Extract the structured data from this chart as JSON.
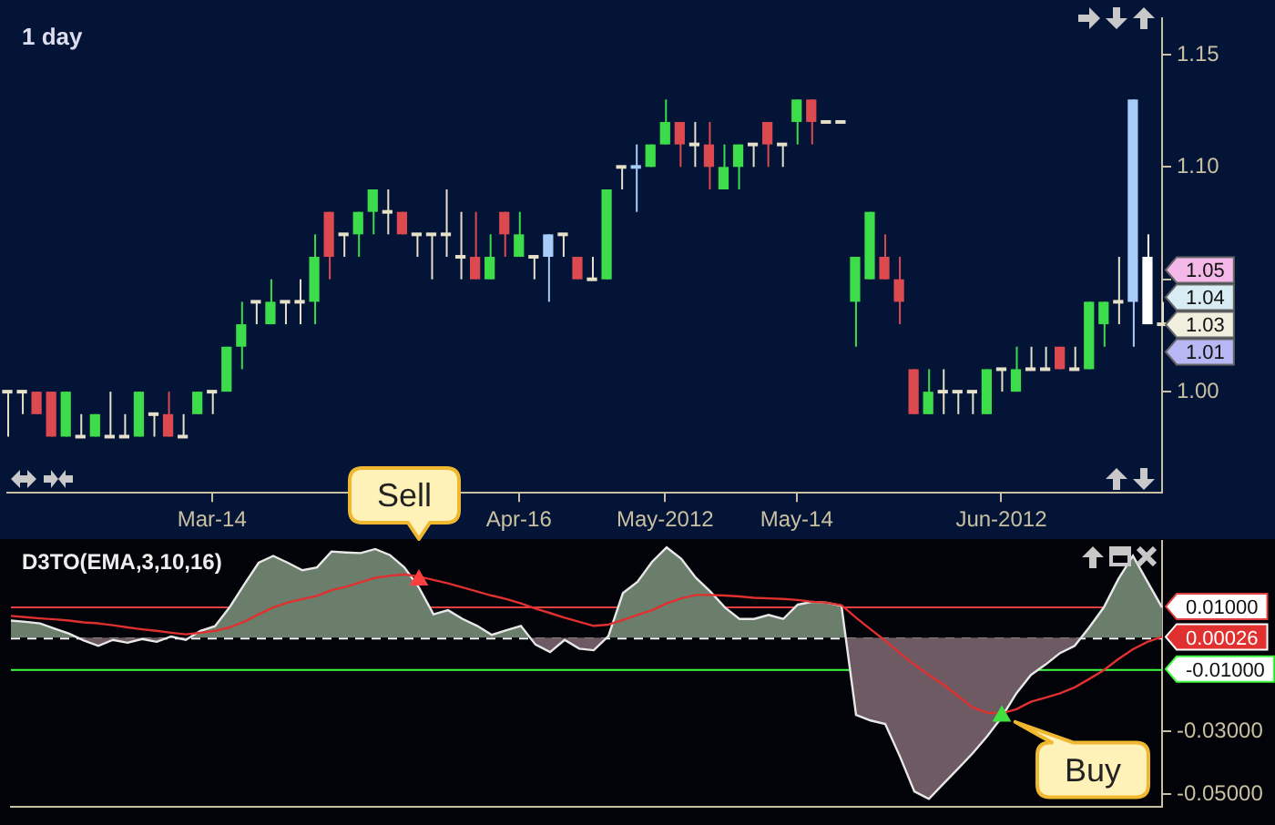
{
  "chart_data": [
    {
      "type": "candlestick",
      "title": "1 day",
      "categories": [
        null,
        null,
        null,
        null,
        null,
        null,
        null,
        null,
        null,
        null,
        null,
        null,
        null,
        null,
        "Mar-14",
        null,
        null,
        null,
        null,
        null,
        null,
        null,
        null,
        null,
        null,
        null,
        null,
        null,
        null,
        null,
        null,
        null,
        null,
        null,
        null,
        "Apr-16",
        null,
        null,
        null,
        null,
        null,
        null,
        null,
        null,
        null,
        "May-2012",
        null,
        null,
        null,
        null,
        null,
        null,
        null,
        null,
        "May-14",
        null,
        null,
        null,
        null,
        null,
        null,
        null,
        null,
        null,
        null,
        null,
        null,
        null,
        "Jun-2012",
        null,
        null,
        null,
        null,
        null,
        null,
        null,
        null,
        null,
        null,
        null
      ],
      "ohlc": [
        [
          1.0,
          1.0,
          0.98,
          1.0
        ],
        [
          1.0,
          1.0,
          0.99,
          1.0
        ],
        [
          1.0,
          1.0,
          0.99,
          0.99
        ],
        [
          1.0,
          1.0,
          0.98,
          0.98
        ],
        [
          0.98,
          1.0,
          0.98,
          1.0
        ],
        [
          0.98,
          0.99,
          0.98,
          0.98
        ],
        [
          0.98,
          0.99,
          0.98,
          0.99
        ],
        [
          0.98,
          1.0,
          0.98,
          0.98
        ],
        [
          0.98,
          0.99,
          0.98,
          0.98
        ],
        [
          0.98,
          1.0,
          0.98,
          1.0
        ],
        [
          0.99,
          0.99,
          0.98,
          0.99
        ],
        [
          0.99,
          1.0,
          0.98,
          0.98
        ],
        [
          0.98,
          0.99,
          0.98,
          0.98
        ],
        [
          0.99,
          1.0,
          0.99,
          1.0
        ],
        [
          1.0,
          1.0,
          0.99,
          1.0
        ],
        [
          1.0,
          1.02,
          1.0,
          1.02
        ],
        [
          1.02,
          1.04,
          1.01,
          1.03
        ],
        [
          1.04,
          1.04,
          1.03,
          1.04
        ],
        [
          1.03,
          1.05,
          1.03,
          1.04
        ],
        [
          1.04,
          1.04,
          1.03,
          1.04
        ],
        [
          1.04,
          1.05,
          1.03,
          1.04
        ],
        [
          1.04,
          1.07,
          1.03,
          1.06
        ],
        [
          1.08,
          1.08,
          1.05,
          1.06
        ],
        [
          1.07,
          1.07,
          1.06,
          1.07
        ],
        [
          1.07,
          1.08,
          1.06,
          1.08
        ],
        [
          1.08,
          1.09,
          1.07,
          1.09
        ],
        [
          1.08,
          1.09,
          1.07,
          1.08
        ],
        [
          1.08,
          1.08,
          1.07,
          1.07
        ],
        [
          1.07,
          1.07,
          1.06,
          1.07
        ],
        [
          1.07,
          1.07,
          1.05,
          1.07
        ],
        [
          1.07,
          1.09,
          1.06,
          1.07
        ],
        [
          1.06,
          1.08,
          1.05,
          1.06
        ],
        [
          1.06,
          1.08,
          1.05,
          1.05
        ],
        [
          1.05,
          1.07,
          1.05,
          1.06
        ],
        [
          1.08,
          1.08,
          1.06,
          1.07
        ],
        [
          1.06,
          1.08,
          1.06,
          1.07
        ],
        [
          1.06,
          1.06,
          1.05,
          1.06
        ],
        [
          1.06,
          1.07,
          1.04,
          1.07
        ],
        [
          1.07,
          1.07,
          1.06,
          1.07
        ],
        [
          1.06,
          1.06,
          1.05,
          1.05
        ],
        [
          1.05,
          1.06,
          1.05,
          1.05
        ],
        [
          1.05,
          1.09,
          1.05,
          1.09
        ],
        [
          1.1,
          1.1,
          1.09,
          1.1
        ],
        [
          1.1,
          1.11,
          1.08,
          1.1
        ],
        [
          1.1,
          1.11,
          1.1,
          1.11
        ],
        [
          1.11,
          1.13,
          1.11,
          1.12
        ],
        [
          1.12,
          1.12,
          1.1,
          1.11
        ],
        [
          1.11,
          1.12,
          1.1,
          1.11
        ],
        [
          1.11,
          1.12,
          1.09,
          1.1
        ],
        [
          1.09,
          1.11,
          1.09,
          1.1
        ],
        [
          1.1,
          1.11,
          1.09,
          1.11
        ],
        [
          1.11,
          1.11,
          1.1,
          1.11
        ],
        [
          1.12,
          1.12,
          1.1,
          1.11
        ],
        [
          1.11,
          1.11,
          1.1,
          1.11
        ],
        [
          1.12,
          1.13,
          1.11,
          1.13
        ],
        [
          1.13,
          1.13,
          1.11,
          1.12
        ],
        [
          1.12,
          1.12,
          1.12,
          1.12
        ],
        [
          1.12,
          1.12,
          1.12,
          1.12
        ],
        [
          1.04,
          1.06,
          1.02,
          1.06
        ],
        [
          1.05,
          1.08,
          1.05,
          1.08
        ],
        [
          1.06,
          1.07,
          1.05,
          1.05
        ],
        [
          1.05,
          1.06,
          1.03,
          1.04
        ],
        [
          1.01,
          1.01,
          0.99,
          0.99
        ],
        [
          0.99,
          1.01,
          0.99,
          1.0
        ],
        [
          1.0,
          1.01,
          0.99,
          1.0
        ],
        [
          1.0,
          1.0,
          0.99,
          1.0
        ],
        [
          1.0,
          1.0,
          0.99,
          1.0
        ],
        [
          0.99,
          1.01,
          0.99,
          1.01
        ],
        [
          1.01,
          1.01,
          1.0,
          1.01
        ],
        [
          1.0,
          1.02,
          1.0,
          1.01
        ],
        [
          1.01,
          1.02,
          1.01,
          1.01
        ],
        [
          1.01,
          1.02,
          1.01,
          1.01
        ],
        [
          1.02,
          1.02,
          1.01,
          1.01
        ],
        [
          1.01,
          1.02,
          1.01,
          1.01
        ],
        [
          1.01,
          1.04,
          1.01,
          1.04
        ],
        [
          1.03,
          1.04,
          1.02,
          1.04
        ],
        [
          1.04,
          1.06,
          1.03,
          1.04
        ],
        [
          1.04,
          1.13,
          1.02,
          1.13
        ],
        [
          1.06,
          1.07,
          1.03,
          1.03
        ],
        [
          1.03,
          1.04,
          1.03,
          1.03
        ]
      ],
      "colors": [
        "#e6e0c8",
        "#e6e0c8",
        "#dc4a50",
        "#dc4a50",
        "#3ddc4a",
        "#e6e0c8",
        "#3ddc4a",
        "#e6e0c8",
        "#e6e0c8",
        "#3ddc4a",
        "#e6e0c8",
        "#dc4a50",
        "#e6e0c8",
        "#3ddc4a",
        "#e6e0c8",
        "#3ddc4a",
        "#3ddc4a",
        "#e6e0c8",
        "#3ddc4a",
        "#e6e0c8",
        "#e6e0c8",
        "#3ddc4a",
        "#dc4a50",
        "#e6e0c8",
        "#3ddc4a",
        "#3ddc4a",
        "#e6e0c8",
        "#dc4a50",
        "#e6e0c8",
        "#e6e0c8",
        "#e6e0c8",
        "#e6e0c8",
        "#dc4a50",
        "#3ddc4a",
        "#dc4a50",
        "#3ddc4a",
        "#e6e0c8",
        "#a8ccf8",
        "#e6e0c8",
        "#dc4a50",
        "#e6e0c8",
        "#3ddc4a",
        "#e6e0c8",
        "#a8ccf8",
        "#3ddc4a",
        "#3ddc4a",
        "#dc4a50",
        "#e6e0c8",
        "#dc4a50",
        "#3ddc4a",
        "#3ddc4a",
        "#e6e0c8",
        "#dc4a50",
        "#e6e0c8",
        "#3ddc4a",
        "#dc4a50",
        "#e6e0c8",
        "#e6e0c8",
        "#3ddc4a",
        "#3ddc4a",
        "#dc4a50",
        "#dc4a50",
        "#dc4a50",
        "#3ddc4a",
        "#e6e0c8",
        "#e6e0c8",
        "#e6e0c8",
        "#3ddc4a",
        "#e6e0c8",
        "#3ddc4a",
        "#e6e0c8",
        "#e6e0c8",
        "#dc4a50",
        "#e6e0c8",
        "#3ddc4a",
        "#3ddc4a",
        "#e6e0c8",
        "#a8ccf8",
        "#ffffff",
        "#e6e0c8"
      ],
      "ylim": [
        0.955,
        1.166
      ],
      "yticks": [
        {
          "value": 1.0,
          "label": "1.00"
        },
        {
          "value": 1.05,
          "label": null
        },
        {
          "value": 1.1,
          "label": "1.10"
        },
        {
          "value": 1.15,
          "label": "1.15"
        }
      ],
      "annotations": [
        "1.05",
        "1.04",
        "1.03",
        "1.01"
      ],
      "grid": false,
      "legend": false
    },
    {
      "type": "area",
      "title": "D3TO(EMA,3,10,16)",
      "categories": [
        null,
        null,
        null,
        null,
        null,
        null,
        null,
        null,
        null,
        null,
        null,
        null,
        null,
        null,
        null,
        null,
        null,
        null,
        null,
        null,
        null,
        null,
        null,
        null,
        null,
        null,
        null,
        null,
        null,
        null,
        null,
        null,
        null,
        null,
        null,
        null,
        null,
        null,
        null,
        null,
        null,
        null,
        null,
        null,
        null,
        null,
        null,
        null,
        null,
        null,
        null,
        null,
        null,
        null,
        null,
        null,
        null,
        null,
        null,
        null,
        null,
        null,
        null,
        null,
        null,
        null,
        null,
        null,
        null,
        null,
        null,
        null,
        null,
        null,
        null,
        null,
        null,
        null,
        null,
        null
      ],
      "series": [
        {
          "type": "area",
          "color": "#6b7d6b",
          "values": [
            0.0055,
            0.0051,
            0.0046,
            0.0029,
            0.0013,
            -0.0009,
            -0.0026,
            -0.0007,
            -0.0016,
            -0.0004,
            -0.0013,
            0.0004,
            -0.0007,
            0.0022,
            0.0037,
            0.0097,
            0.017,
            0.024,
            0.0262,
            0.024,
            0.0216,
            0.0225,
            0.0276,
            0.0273,
            0.0271,
            0.0284,
            0.0265,
            0.0225,
            0.0161,
            0.0075,
            0.0088,
            0.006,
            0.0038,
            0.0009,
            0.0024,
            0.0038,
            -0.0022,
            -0.0046,
            -0.0007,
            -0.0035,
            -0.004,
            0.0005,
            0.0143,
            0.0179,
            0.0243,
            0.0289,
            0.0253,
            0.0192,
            0.0148,
            0.0097,
            0.006,
            0.006,
            0.0073,
            0.006,
            0.0106,
            0.0115,
            0.0112,
            0.0102,
            -0.0247,
            -0.0265,
            -0.0276,
            -0.0379,
            -0.0492,
            -0.0516,
            -0.0467,
            -0.0419,
            -0.037,
            -0.0315,
            -0.0254,
            -0.0178,
            -0.0119,
            -0.0086,
            -0.0049,
            -0.0026,
            0.0033,
            0.0097,
            0.0188,
            0.0262,
            0.0179,
            0.0097
          ]
        },
        {
          "type": "line",
          "color": "#e03030",
          "values": [
            0.007,
            0.0066,
            0.0062,
            0.0059,
            0.0055,
            0.0049,
            0.0046,
            0.004,
            0.0033,
            0.0027,
            0.0022,
            0.0016,
            0.0011,
            0.0016,
            0.0022,
            0.0033,
            0.0051,
            0.0075,
            0.0097,
            0.0113,
            0.0124,
            0.0134,
            0.0152,
            0.0163,
            0.0178,
            0.0192,
            0.0198,
            0.0203,
            0.0196,
            0.0185,
            0.0174,
            0.0161,
            0.0148,
            0.0135,
            0.0124,
            0.011,
            0.0093,
            0.0079,
            0.0064,
            0.0051,
            0.0038,
            0.0042,
            0.0057,
            0.0073,
            0.0088,
            0.011,
            0.0126,
            0.0137,
            0.0137,
            0.0135,
            0.0132,
            0.0128,
            0.0126,
            0.0124,
            0.0121,
            0.0115,
            0.0112,
            0.0104,
            0.0064,
            0.0027,
            -0.0009,
            -0.0049,
            -0.0086,
            -0.0119,
            -0.015,
            -0.0187,
            -0.0223,
            -0.024,
            -0.0242,
            -0.0229,
            -0.0205,
            -0.0192,
            -0.0178,
            -0.0159,
            -0.0132,
            -0.0104,
            -0.0068,
            -0.0037,
            -0.0013,
            0.00026
          ]
        },
        {
          "type": "scatter",
          "color": "#ff4040",
          "marker": "triangle",
          "values": [
            null,
            null,
            null,
            null,
            null,
            null,
            null,
            null,
            null,
            null,
            null,
            null,
            null,
            null,
            null,
            null,
            null,
            null,
            null,
            null,
            null,
            null,
            null,
            null,
            null,
            null,
            null,
            null,
            0.0185,
            null,
            null,
            null,
            null,
            null,
            null,
            null,
            null,
            null,
            null,
            null,
            null,
            null,
            null,
            null,
            null,
            null,
            null,
            null,
            null,
            null,
            null,
            null,
            null,
            null,
            null,
            null,
            null,
            null,
            null,
            null,
            null,
            null,
            null,
            null,
            null,
            null,
            null,
            null,
            null,
            null,
            null,
            null,
            null,
            null,
            null,
            null,
            null,
            null,
            null,
            null
          ]
        },
        {
          "type": "scatter",
          "color": "#40e040",
          "marker": "triangle",
          "values": [
            null,
            null,
            null,
            null,
            null,
            null,
            null,
            null,
            null,
            null,
            null,
            null,
            null,
            null,
            null,
            null,
            null,
            null,
            null,
            null,
            null,
            null,
            null,
            null,
            null,
            null,
            null,
            null,
            null,
            null,
            null,
            null,
            null,
            null,
            null,
            null,
            null,
            null,
            null,
            null,
            null,
            null,
            null,
            null,
            null,
            null,
            null,
            null,
            null,
            null,
            null,
            null,
            null,
            null,
            null,
            null,
            null,
            null,
            null,
            null,
            null,
            null,
            null,
            null,
            null,
            null,
            null,
            null,
            -0.0251,
            null,
            null,
            null,
            null,
            null,
            null,
            null,
            null,
            null,
            null,
            null
          ]
        }
      ],
      "ylim": [
        -0.054,
        0.031
      ],
      "yticks": [
        {
          "value": -0.05,
          "label": "-0.05000"
        },
        {
          "value": -0.03,
          "label": "-0.03000"
        }
      ],
      "ref_lines": [
        {
          "axis": "y",
          "value": 0.01,
          "label": "0.01000",
          "color": "#e04040"
        },
        {
          "axis": "y",
          "value": 0,
          "color": "#ffffff",
          "line_style": "dashed"
        },
        {
          "axis": "y",
          "value": -0.01,
          "label": "-0.01000",
          "color": "#40ff40"
        }
      ],
      "annotations": [
        "Sell",
        "Buy",
        "0.00026"
      ],
      "tick_labels": "y",
      "grid": false,
      "legend": false
    }
  ]
}
